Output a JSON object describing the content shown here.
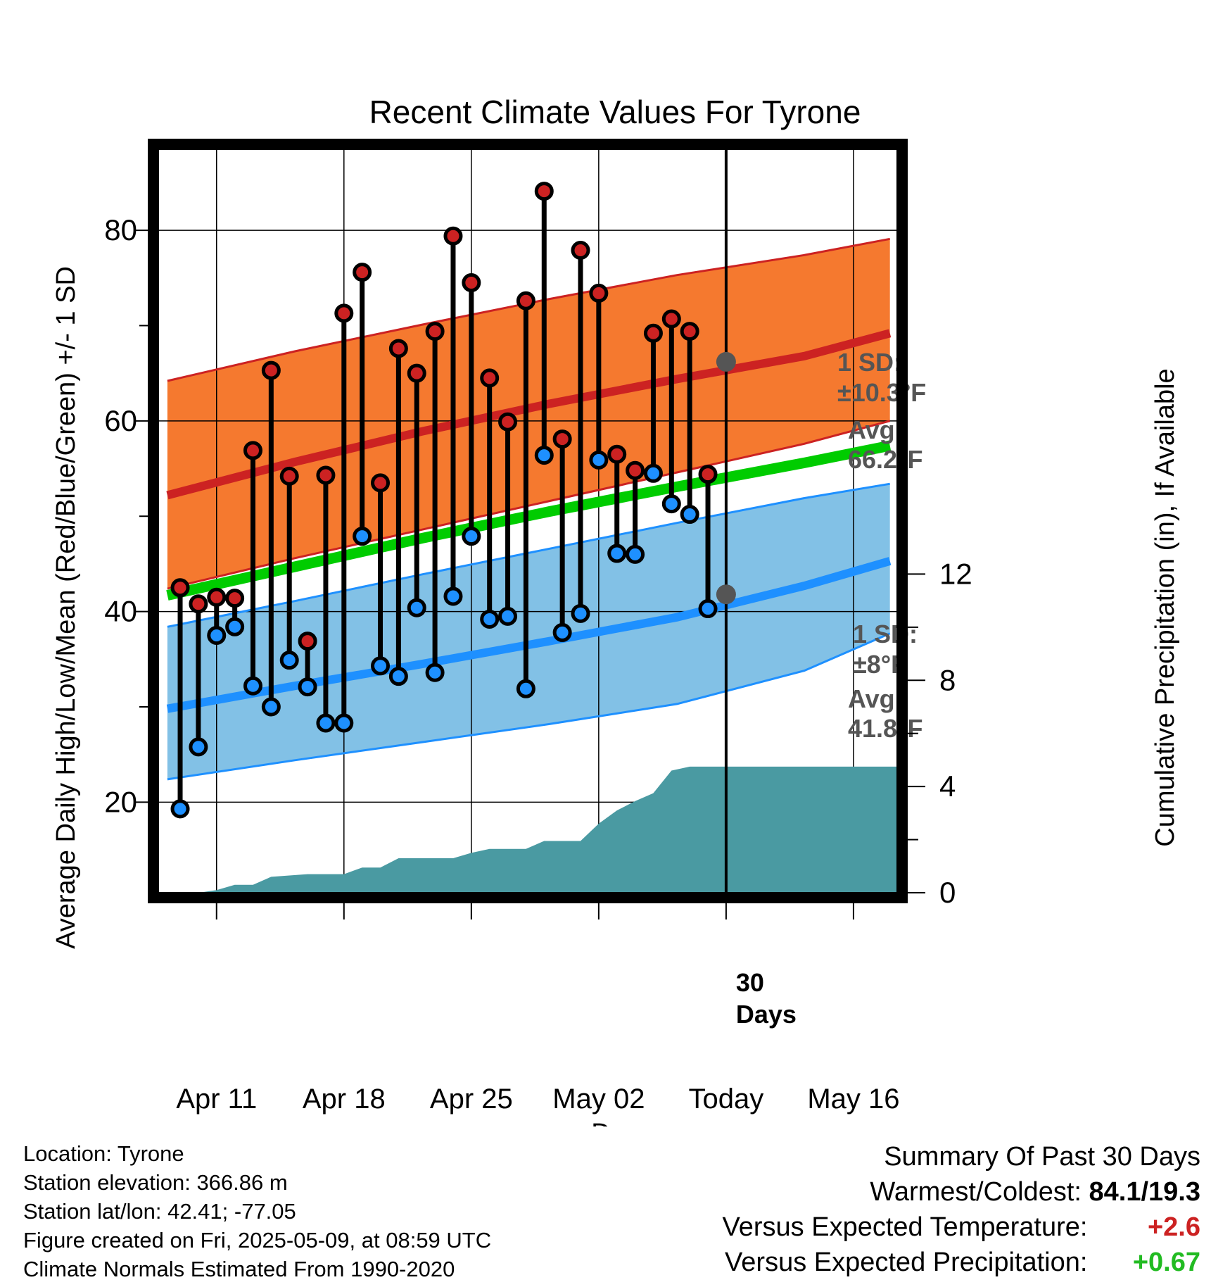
{
  "chart_data": {
    "type": "line",
    "title": "Recent Climate Values For Tyrone",
    "xlabel": "Day",
    "ylabel_left": "Average Daily High/Low/Mean (Red/Blue/Green) +/- 1 SD",
    "ylabel_right": "Cumulative Precipitation (in), If Available",
    "x_ticks": [
      {
        "label": "Apr 11",
        "day": 0
      },
      {
        "label": "Apr 18",
        "day": 7
      },
      {
        "label": "Apr 25",
        "day": 14
      },
      {
        "label": "May 02",
        "day": 21
      },
      {
        "label": "Today",
        "day": 28
      },
      {
        "label": "May 16",
        "day": 35
      }
    ],
    "xlim": [
      -3.2,
      37.4
    ],
    "ylim": [
      10.5,
      88.5
    ],
    "y_ticks": [
      20,
      40,
      60,
      80
    ],
    "y2lim": [
      0,
      28
    ],
    "y2_ticks": [
      0,
      4,
      8,
      12
    ],
    "grid": true,
    "today_day": 28,
    "today_label": "30 Days",
    "normals": {
      "x": [
        -2.7,
        4.3,
        11.3,
        18.3,
        25.3,
        32.3,
        37
      ],
      "high_mean": [
        52.2,
        55.7,
        58.9,
        61.8,
        64.4,
        66.8,
        69.2
      ],
      "high_upper": [
        64.2,
        67.3,
        70.1,
        72.8,
        75.3,
        77.4,
        79.1
      ],
      "high_lower": [
        42.4,
        45.6,
        48.6,
        51.6,
        54.6,
        57.6,
        60.0
      ],
      "mean_line": [
        41.7,
        44.7,
        47.7,
        50.5,
        53.1,
        55.6,
        57.4
      ],
      "low_mean": [
        29.8,
        32.2,
        34.5,
        36.9,
        39.4,
        42.7,
        45.3
      ],
      "low_upper": [
        38.4,
        41.1,
        43.9,
        46.6,
        49.3,
        51.9,
        53.4
      ],
      "low_lower": [
        22.4,
        24.4,
        26.3,
        28.2,
        30.3,
        33.8,
        37.7
      ]
    },
    "series": [
      {
        "name": "High",
        "color": "#cc2222",
        "values": [
          42.5,
          40.8,
          41.5,
          41.4,
          56.9,
          65.3,
          54.2,
          36.9,
          54.3,
          71.3,
          75.6,
          53.5,
          67.6,
          65.0,
          69.4,
          79.4,
          74.5,
          64.5,
          59.9,
          72.6,
          84.1,
          58.1,
          77.9,
          73.4,
          56.5,
          54.8,
          69.2,
          70.7,
          69.4,
          54.4
        ]
      },
      {
        "name": "Low",
        "color": "#1e90ff",
        "values": [
          19.3,
          25.8,
          37.5,
          38.4,
          32.2,
          30.0,
          34.9,
          32.1,
          28.3,
          28.3,
          47.9,
          34.3,
          33.2,
          40.4,
          33.6,
          41.6,
          47.9,
          39.2,
          39.5,
          31.9,
          56.4,
          37.8,
          39.8,
          55.9,
          46.1,
          46.0,
          54.5,
          51.3,
          50.2,
          40.3
        ]
      }
    ],
    "days": [
      -2,
      -1,
      0,
      1,
      2,
      3,
      4,
      5,
      6,
      7,
      8,
      9,
      10,
      11,
      12,
      13,
      14,
      15,
      16,
      17,
      18,
      19,
      20,
      21,
      22,
      23,
      24,
      25,
      26,
      27
    ],
    "precipitation": {
      "name": "Cumulative Precipitation",
      "color": "#4a9aa2",
      "days": [
        -1,
        0,
        1,
        2,
        3,
        4,
        5,
        6,
        7,
        8,
        9,
        10,
        11,
        12,
        13,
        14,
        15,
        16,
        17,
        18,
        19,
        20,
        21,
        22,
        23,
        24,
        25,
        26,
        27,
        28,
        37.4
      ],
      "values": [
        0.0,
        0.1,
        0.3,
        0.3,
        0.6,
        0.65,
        0.7,
        0.7,
        0.7,
        0.95,
        0.95,
        1.3,
        1.3,
        1.3,
        1.3,
        1.5,
        1.65,
        1.65,
        1.65,
        1.95,
        1.95,
        1.95,
        2.6,
        3.1,
        3.45,
        3.75,
        4.6,
        4.75,
        4.75,
        4.75,
        4.75
      ]
    },
    "annotations": {
      "high_sd_title": "1 SD:",
      "high_sd_value": "±10.3°F",
      "high_avg_title": "Avg:",
      "high_avg_value": "66.2°F",
      "high_avg": 66.2,
      "low_sd_title": "1 SD:",
      "low_sd_value": "±8°F",
      "low_avg_title": "Avg:",
      "low_avg_value": "41.8°F",
      "low_avg": 41.8
    },
    "colors": {
      "high_band": "#f5792f",
      "high_line": "#cc2222",
      "low_band": "#82c1e6",
      "low_line": "#1e90ff",
      "mean_line": "#00cc00",
      "precip": "#4a9aa2",
      "annotation": "#555555"
    }
  },
  "footer": {
    "location": "Location: Tyrone",
    "elevation": "Station elevation: 366.86 m",
    "latlon": "Station lat/lon: 42.41; -77.05",
    "created": "Figure created on Fri, 2025-05-09, at 08:59 UTC",
    "normals": "Climate Normals Estimated From 1990-2020"
  },
  "summary": {
    "title": "Summary Of Past 30 Days",
    "warmest_label": "Warmest/Coldest:",
    "warmest_value": "84.1/19.3",
    "temp_label": "Versus Expected Temperature:",
    "temp_value": "+2.6",
    "temp_color": "#cc2222",
    "precip_label": "Versus Expected Precipitation:",
    "precip_value": "+0.67",
    "precip_color": "#22bb22"
  }
}
